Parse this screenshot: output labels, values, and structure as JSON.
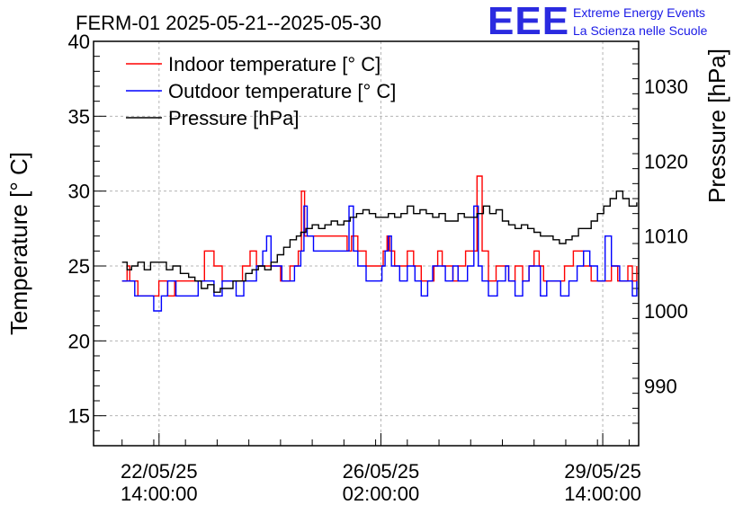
{
  "title": "FERM-01 2025-05-21--2025-05-30",
  "brand": {
    "logo": "EEE",
    "line1": "Extreme Energy Events",
    "line2": "La Scienza nelle Scuole",
    "color": "#2a2ae0"
  },
  "colors": {
    "indoor": "#ff0000",
    "outdoor": "#0000ff",
    "pressure": "#000000",
    "grid": "#b4b4b4"
  },
  "chart_data": {
    "type": "line",
    "title": "FERM-01 2025-05-21--2025-05-30",
    "xlabel": "",
    "ylabel": "Temperature [° C]",
    "y2label": "Pressure [hPa]",
    "x_unit": "days since 2025-05-21 00:00",
    "xlim": [
      0.55,
      9.15
    ],
    "ylim": [
      13,
      40
    ],
    "y2lim": [
      982,
      1036
    ],
    "grid": true,
    "legend_position": "top-left",
    "x_ticks": [
      {
        "x": 1.5833,
        "line1": "22/05/25",
        "line2": "14:00:00"
      },
      {
        "x": 5.0833,
        "line1": "26/05/25",
        "line2": "02:00:00"
      },
      {
        "x": 8.5833,
        "line1": "29/05/25",
        "line2": "14:00:00"
      }
    ],
    "y_ticks": [
      15,
      20,
      25,
      30,
      35,
      40
    ],
    "y2_ticks": [
      990,
      1000,
      1010,
      1020,
      1030
    ],
    "series": [
      {
        "name": "Indoor temperature [° C]",
        "axis": "left",
        "x": [
          1.0,
          1.08,
          1.12,
          1.25,
          1.33,
          1.58,
          1.72,
          1.83,
          1.92,
          2.05,
          2.3,
          2.45,
          2.58,
          2.72,
          2.9,
          3.02,
          3.12,
          3.22,
          3.35,
          3.5,
          3.65,
          3.78,
          3.83,
          3.88,
          4.02,
          4.3,
          4.55,
          4.62,
          4.72,
          4.85,
          5.0,
          5.12,
          5.18,
          5.22,
          5.3,
          5.42,
          5.5,
          5.6,
          5.72,
          5.85,
          5.92,
          5.98,
          6.05,
          6.12,
          6.22,
          6.3,
          6.42,
          6.55,
          6.6,
          6.68,
          6.78,
          6.9,
          7.02,
          7.1,
          7.2,
          7.32,
          7.42,
          7.5,
          7.58,
          7.65,
          7.72,
          7.82,
          7.98,
          8.12,
          8.2,
          8.28,
          8.4,
          8.62,
          8.72,
          8.82,
          8.9,
          8.98,
          9.05,
          9.12
        ],
        "y": [
          24,
          25,
          24,
          23,
          23,
          24,
          23,
          24,
          24,
          24,
          26,
          25,
          24,
          24,
          25,
          26,
          25,
          25,
          25,
          24,
          25,
          26,
          30,
          27,
          27,
          27,
          26,
          27,
          26,
          25,
          25,
          26,
          27,
          26,
          25,
          25,
          26,
          25,
          24,
          24,
          25,
          26,
          25,
          25,
          24,
          25,
          26,
          26,
          31,
          26,
          24,
          25,
          25,
          24,
          25,
          24,
          25,
          26,
          25,
          24,
          24,
          24,
          25,
          26,
          26,
          25,
          24,
          24,
          25,
          24,
          24,
          25,
          24,
          25
        ]
      },
      {
        "name": "Outdoor temperature [° C]",
        "axis": "left",
        "x": [
          1.0,
          1.1,
          1.2,
          1.35,
          1.5,
          1.62,
          1.72,
          1.85,
          1.92,
          2.2,
          2.35,
          2.45,
          2.58,
          2.72,
          2.8,
          2.92,
          3.02,
          3.12,
          3.22,
          3.28,
          3.35,
          3.45,
          3.52,
          3.62,
          3.72,
          3.82,
          3.87,
          3.92,
          4.02,
          4.12,
          4.5,
          4.58,
          4.65,
          4.72,
          4.85,
          5.0,
          5.1,
          5.15,
          5.2,
          5.25,
          5.38,
          5.5,
          5.62,
          5.72,
          5.82,
          5.9,
          5.98,
          6.1,
          6.22,
          6.3,
          6.45,
          6.55,
          6.62,
          6.68,
          6.78,
          6.92,
          7.05,
          7.1,
          7.2,
          7.32,
          7.42,
          7.5,
          7.6,
          7.7,
          7.82,
          7.92,
          8.05,
          8.18,
          8.28,
          8.38,
          8.5,
          8.62,
          8.72,
          8.85,
          8.95,
          9.05,
          9.12
        ],
        "y": [
          24,
          24,
          23,
          23,
          22,
          23,
          24,
          23,
          23,
          24,
          24,
          23,
          24,
          24,
          23,
          24,
          24,
          25,
          26,
          27,
          25,
          25,
          24,
          24,
          25,
          26,
          29,
          27,
          26,
          26,
          26,
          29,
          26,
          25,
          24,
          24,
          25,
          26,
          27,
          25,
          24,
          25,
          24,
          23,
          24,
          25,
          25,
          24,
          25,
          24,
          25,
          29,
          25,
          24,
          23,
          24,
          25,
          24,
          23,
          24,
          25,
          25,
          23,
          24,
          24,
          23,
          24,
          25,
          26,
          25,
          24,
          27,
          25,
          24,
          24,
          23,
          24
        ]
      },
      {
        "name": "Pressure [hPa]",
        "axis": "right",
        "x": [
          1.0,
          1.08,
          1.15,
          1.25,
          1.35,
          1.45,
          1.58,
          1.7,
          1.8,
          1.92,
          2.05,
          2.15,
          2.25,
          2.35,
          2.45,
          2.55,
          2.65,
          2.75,
          2.85,
          2.95,
          3.05,
          3.15,
          3.25,
          3.35,
          3.45,
          3.55,
          3.65,
          3.75,
          3.82,
          3.9,
          4.0,
          4.1,
          4.2,
          4.3,
          4.4,
          4.5,
          4.6,
          4.7,
          4.8,
          4.9,
          5.0,
          5.1,
          5.2,
          5.3,
          5.4,
          5.5,
          5.6,
          5.7,
          5.8,
          5.9,
          6.0,
          6.1,
          6.2,
          6.3,
          6.4,
          6.5,
          6.6,
          6.7,
          6.8,
          6.9,
          7.0,
          7.1,
          7.2,
          7.3,
          7.4,
          7.5,
          7.6,
          7.7,
          7.8,
          7.9,
          8.0,
          8.1,
          8.2,
          8.3,
          8.4,
          8.5,
          8.6,
          8.7,
          8.8,
          8.9,
          9.0,
          9.12
        ],
        "y": [
          1006.5,
          1005.5,
          1006,
          1006.5,
          1005.5,
          1006.5,
          1006.5,
          1005.5,
          1006,
          1005,
          1004.5,
          1004,
          1003,
          1003.5,
          1002.5,
          1003,
          1003,
          1004,
          1004,
          1005,
          1005.5,
          1006,
          1005.5,
          1006.5,
          1007.5,
          1008.5,
          1009.5,
          1010,
          1010.5,
          1011,
          1011.5,
          1011,
          1011.5,
          1012,
          1011.5,
          1012,
          1012.5,
          1013,
          1013.5,
          1013,
          1012.5,
          1012.5,
          1013,
          1012.5,
          1013,
          1014,
          1013,
          1013.5,
          1013,
          1012.5,
          1013,
          1012,
          1012,
          1013,
          1012.5,
          1012.5,
          1013,
          1014,
          1013,
          1013.5,
          1012,
          1011.5,
          1011,
          1011.5,
          1011,
          1010.5,
          1010,
          1010,
          1009.5,
          1009,
          1009.5,
          1010,
          1011,
          1011,
          1012,
          1013,
          1014,
          1015,
          1016,
          1015,
          1014,
          1014.5
        ]
      }
    ]
  }
}
